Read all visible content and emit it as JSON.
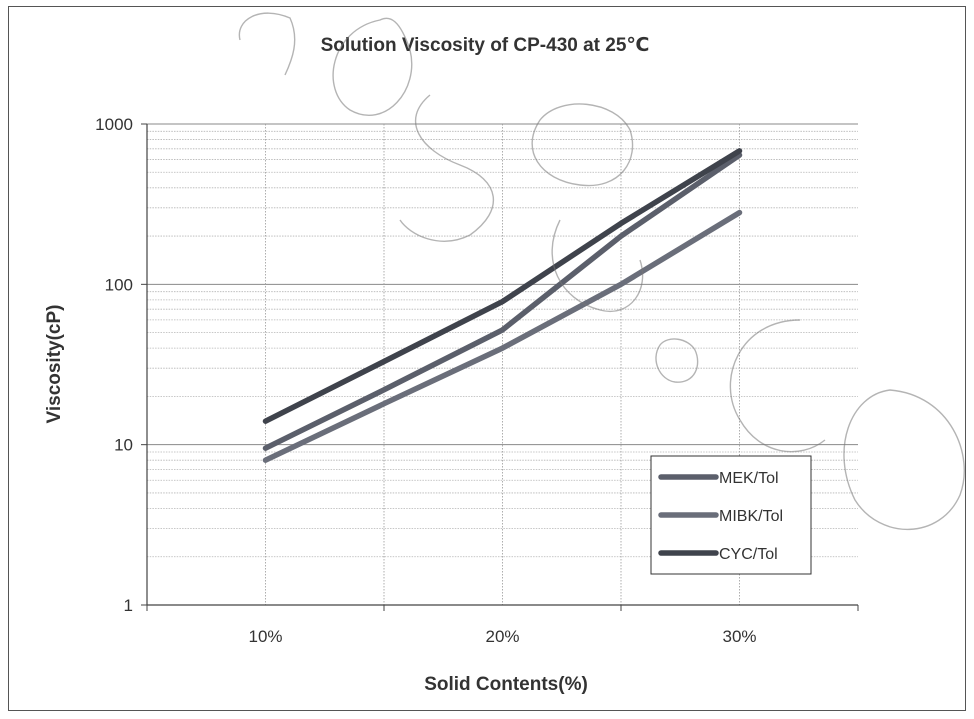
{
  "chart_data": {
    "type": "line",
    "title": "Solution Viscosity of CP-430 at 25℃",
    "xlabel": "Solid Contents(%)",
    "ylabel": "Viscosity(cP)",
    "y_scale": "log",
    "ylim": [
      1,
      1000
    ],
    "y_ticks": [
      "1",
      "10",
      "100",
      "1000"
    ],
    "categories": [
      "10%",
      "20%",
      "30%"
    ],
    "x": [
      10,
      20,
      30
    ],
    "xlim": [
      5,
      35
    ],
    "grid": "major and minor horizontal, vertical at category centers and boundaries",
    "legend_position": "bottom-right",
    "series": [
      {
        "name": "MEK/Tol",
        "x": [
          10,
          15,
          20,
          25,
          30
        ],
        "values": [
          9.5,
          22,
          52,
          200,
          640
        ],
        "color": "#5b5f6b"
      },
      {
        "name": "MIBK/Tol",
        "x": [
          10,
          15,
          20,
          25,
          30
        ],
        "values": [
          8,
          18,
          40,
          100,
          280
        ],
        "color": "#6a6e7a"
      },
      {
        "name": "CYC/Tol",
        "x": [
          10,
          15,
          20,
          25,
          30
        ],
        "values": [
          14,
          33,
          78,
          240,
          680
        ],
        "color": "#3f434c"
      }
    ]
  },
  "watermark": {
    "text": "hosar.co",
    "icon": "watermark-outline-letters"
  }
}
